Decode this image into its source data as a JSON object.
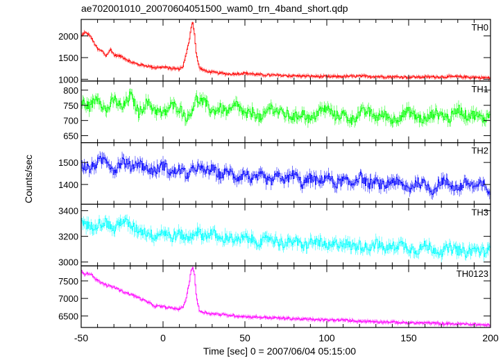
{
  "title": "ae702001010_20070604051500_wam0_trn_4band_short.qdp",
  "chart_data": {
    "type": "line",
    "title": "ae702001010_20070604051500_wam0_trn_4band_short.qdp",
    "xlabel": "Time [sec] 0 = 2007/06/04 05:15:00",
    "ylabel": "Counts/sec",
    "xlim": [
      -50,
      200
    ],
    "x_ticks": [
      -50,
      0,
      50,
      100,
      150,
      200
    ],
    "panels": [
      {
        "name": "TH0",
        "color": "#ff0000",
        "ylim": [
          960,
          2380
        ],
        "y_ticks": [
          1000,
          1500,
          2000
        ],
        "x": [
          -50,
          -48,
          -45,
          -42,
          -40,
          -37,
          -35,
          -32,
          -30,
          -25,
          -20,
          -15,
          -10,
          -5,
          0,
          5,
          10,
          12,
          14,
          16,
          17,
          18,
          19,
          20,
          22,
          25,
          30,
          40,
          50,
          60,
          80,
          100,
          120,
          150,
          180,
          200
        ],
        "y": [
          2000,
          2080,
          2020,
          1820,
          1690,
          1640,
          1540,
          1690,
          1560,
          1520,
          1400,
          1340,
          1310,
          1270,
          1280,
          1250,
          1240,
          1300,
          1580,
          1940,
          2210,
          2320,
          2050,
          1600,
          1270,
          1200,
          1160,
          1120,
          1140,
          1100,
          1080,
          1060,
          1070,
          1050,
          1060,
          1030
        ]
      },
      {
        "name": "TH1",
        "color": "#00ff00",
        "ylim": [
          627,
          830
        ],
        "y_ticks": [
          650,
          700,
          750,
          800
        ],
        "x": [
          -50,
          -45,
          -40,
          -35,
          -30,
          -25,
          -20,
          -15,
          -10,
          -5,
          0,
          5,
          10,
          15,
          20,
          25,
          30,
          35,
          40,
          45,
          50,
          55,
          60,
          65,
          70,
          75,
          80,
          85,
          90,
          95,
          100,
          105,
          110,
          115,
          120,
          125,
          130,
          135,
          140,
          145,
          150,
          155,
          160,
          165,
          170,
          175,
          180,
          185,
          190,
          195,
          200
        ],
        "y": [
          760,
          745,
          780,
          730,
          770,
          740,
          785,
          725,
          760,
          735,
          720,
          750,
          740,
          705,
          770,
          760,
          730,
          740,
          725,
          755,
          715,
          730,
          700,
          745,
          730,
          720,
          710,
          725,
          700,
          730,
          740,
          715,
          720,
          700,
          725,
          730,
          710,
          720,
          700,
          715,
          730,
          710,
          700,
          725,
          720,
          705,
          740,
          715,
          720,
          705,
          720
        ]
      },
      {
        "name": "TH2",
        "color": "#0000ff",
        "ylim": [
          1310,
          1590
        ],
        "y_ticks": [
          1400,
          1500
        ],
        "x": [
          -50,
          -45,
          -40,
          -35,
          -30,
          -25,
          -20,
          -15,
          -10,
          -5,
          0,
          5,
          10,
          15,
          20,
          25,
          30,
          35,
          40,
          45,
          50,
          55,
          60,
          65,
          70,
          75,
          80,
          85,
          90,
          95,
          100,
          105,
          110,
          115,
          120,
          125,
          130,
          135,
          140,
          145,
          150,
          155,
          160,
          165,
          170,
          175,
          180,
          185,
          190,
          195,
          200
        ],
        "y": [
          1490,
          1470,
          1500,
          1520,
          1460,
          1510,
          1480,
          1500,
          1470,
          1460,
          1490,
          1450,
          1470,
          1440,
          1480,
          1460,
          1470,
          1440,
          1460,
          1430,
          1450,
          1420,
          1440,
          1410,
          1440,
          1420,
          1450,
          1400,
          1430,
          1410,
          1440,
          1400,
          1420,
          1400,
          1440,
          1400,
          1410,
          1390,
          1420,
          1400,
          1380,
          1410,
          1400,
          1370,
          1420,
          1400,
          1380,
          1410,
          1390,
          1400,
          1360
        ]
      },
      {
        "name": "TH3",
        "color": "#00ffff",
        "ylim": [
          2970,
          3450
        ],
        "y_ticks": [
          3000,
          3200,
          3400
        ],
        "x": [
          -50,
          -45,
          -40,
          -35,
          -30,
          -25,
          -20,
          -15,
          -10,
          -5,
          0,
          5,
          10,
          15,
          20,
          25,
          30,
          35,
          40,
          45,
          50,
          55,
          60,
          65,
          70,
          75,
          80,
          85,
          90,
          95,
          100,
          105,
          110,
          115,
          120,
          125,
          130,
          135,
          140,
          145,
          150,
          155,
          160,
          165,
          170,
          175,
          180,
          185,
          190,
          195,
          200
        ],
        "y": [
          3330,
          3270,
          3300,
          3310,
          3250,
          3330,
          3280,
          3250,
          3230,
          3200,
          3240,
          3190,
          3220,
          3180,
          3240,
          3200,
          3230,
          3170,
          3200,
          3160,
          3190,
          3170,
          3150,
          3190,
          3160,
          3140,
          3170,
          3120,
          3150,
          3160,
          3110,
          3140,
          3150,
          3120,
          3130,
          3110,
          3150,
          3100,
          3120,
          3140,
          3110,
          3090,
          3130,
          3100,
          3080,
          3110,
          3090,
          3070,
          3100,
          3080,
          3090
        ]
      },
      {
        "name": "TH0123",
        "color": "#ff00ff",
        "ylim": [
          6170,
          7930
        ],
        "y_ticks": [
          6500,
          7000,
          7500
        ],
        "x": [
          -50,
          -48,
          -45,
          -42,
          -40,
          -35,
          -30,
          -25,
          -20,
          -15,
          -10,
          -5,
          0,
          5,
          10,
          12,
          14,
          16,
          17,
          18,
          19,
          20,
          22,
          25,
          30,
          40,
          50,
          60,
          70,
          80,
          90,
          100,
          110,
          120,
          130,
          140,
          150,
          160,
          170,
          180,
          190,
          200
        ],
        "y": [
          7800,
          7700,
          7720,
          7600,
          7500,
          7380,
          7320,
          7200,
          7120,
          7020,
          6900,
          6780,
          6760,
          6720,
          6700,
          6760,
          7000,
          7500,
          7820,
          7880,
          7700,
          7100,
          6650,
          6600,
          6560,
          6520,
          6480,
          6460,
          6440,
          6420,
          6400,
          6380,
          6380,
          6350,
          6340,
          6320,
          6300,
          6300,
          6280,
          6270,
          6260,
          6230
        ]
      }
    ]
  }
}
